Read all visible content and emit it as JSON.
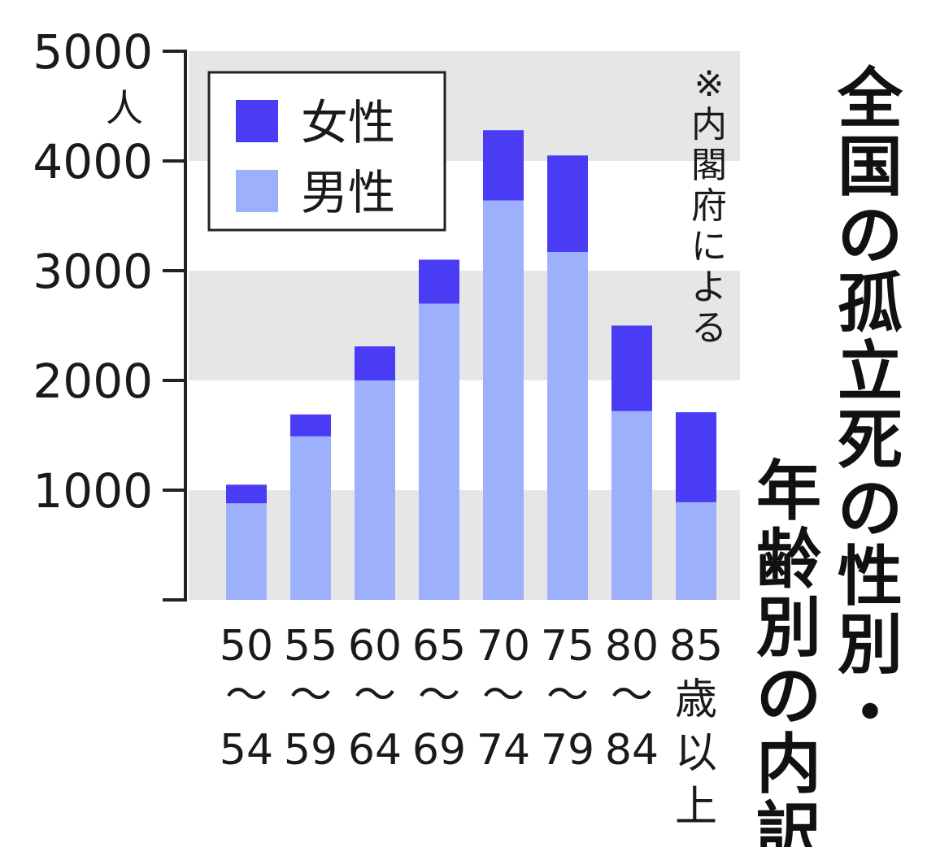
{
  "chart_data": {
    "type": "bar",
    "stacked": true,
    "title": "全国の孤立死の性別・年齢別の内訳",
    "title_columns": [
      "全国の孤立死の性別・",
      "年齢別の内訳"
    ],
    "note": "※内閣府による",
    "y_unit": "人",
    "ylim": [
      0,
      5000
    ],
    "yticks": [
      1000,
      2000,
      3000,
      4000,
      5000
    ],
    "grid": "alternating horizontal bands",
    "legend_position": "top-left",
    "categories": [
      "50〜54",
      "55〜59",
      "60〜64",
      "65〜69",
      "70〜74",
      "75〜79",
      "80〜84",
      "85歳以上"
    ],
    "category_labels": [
      [
        "50",
        "〜",
        "54"
      ],
      [
        "55",
        "〜",
        "59"
      ],
      [
        "60",
        "〜",
        "64"
      ],
      [
        "65",
        "〜",
        "69"
      ],
      [
        "70",
        "〜",
        "74"
      ],
      [
        "75",
        "〜",
        "79"
      ],
      [
        "80",
        "〜",
        "84"
      ],
      [
        "85",
        "歳",
        "以",
        "上"
      ]
    ],
    "series": [
      {
        "name": "男性",
        "color": "#9db0fb",
        "values": [
          880,
          1490,
          2000,
          2700,
          3640,
          3170,
          1720,
          890
        ]
      },
      {
        "name": "女性",
        "color": "#4a3cf5",
        "values": [
          170,
          200,
          310,
          400,
          640,
          880,
          780,
          820
        ]
      }
    ],
    "legend": [
      "女性",
      "男性"
    ]
  }
}
